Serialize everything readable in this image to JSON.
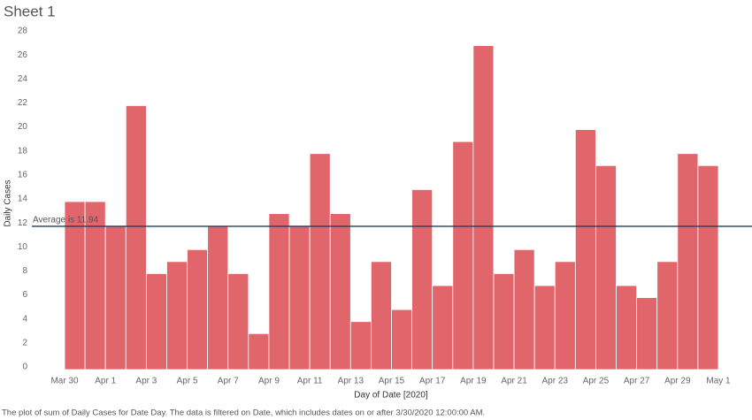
{
  "chart_data": {
    "type": "bar",
    "title": "Sheet 1",
    "y_label": "Daily Cases",
    "x_label": "Day of Date [2020]",
    "caption": "The plot of sum of Daily Cases for Date Day. The data is filtered on Date, which includes dates on or after 3/30/2020 12:00:00 AM.",
    "categories": [
      "Mar 30",
      null,
      "Apr 1",
      null,
      "Apr 3",
      null,
      "Apr 5",
      null,
      "Apr 7",
      null,
      "Apr 9",
      null,
      "Apr 11",
      null,
      "Apr 13",
      null,
      "Apr 15",
      null,
      "Apr 17",
      null,
      "Apr 19",
      null,
      "Apr 21",
      null,
      "Apr 23",
      null,
      "Apr 25",
      null,
      "Apr 27",
      null,
      "Apr 29",
      null
    ],
    "end_label": "May 1",
    "values": [
      14,
      14,
      12,
      22,
      8,
      9,
      10,
      12,
      8,
      3,
      13,
      12,
      18,
      13,
      4,
      9,
      5,
      15,
      7,
      19,
      27,
      8,
      10,
      7,
      9,
      20,
      17,
      7,
      6,
      9,
      18,
      17
    ],
    "color": "#e0666b",
    "ylim": [
      0,
      28
    ],
    "yticks": [
      0,
      2,
      4,
      6,
      8,
      10,
      12,
      14,
      16,
      18,
      20,
      22,
      24,
      26,
      28
    ],
    "reference_line": {
      "value": 11.94,
      "label": "Average is 11.94",
      "color": "#1f3f5f"
    }
  }
}
